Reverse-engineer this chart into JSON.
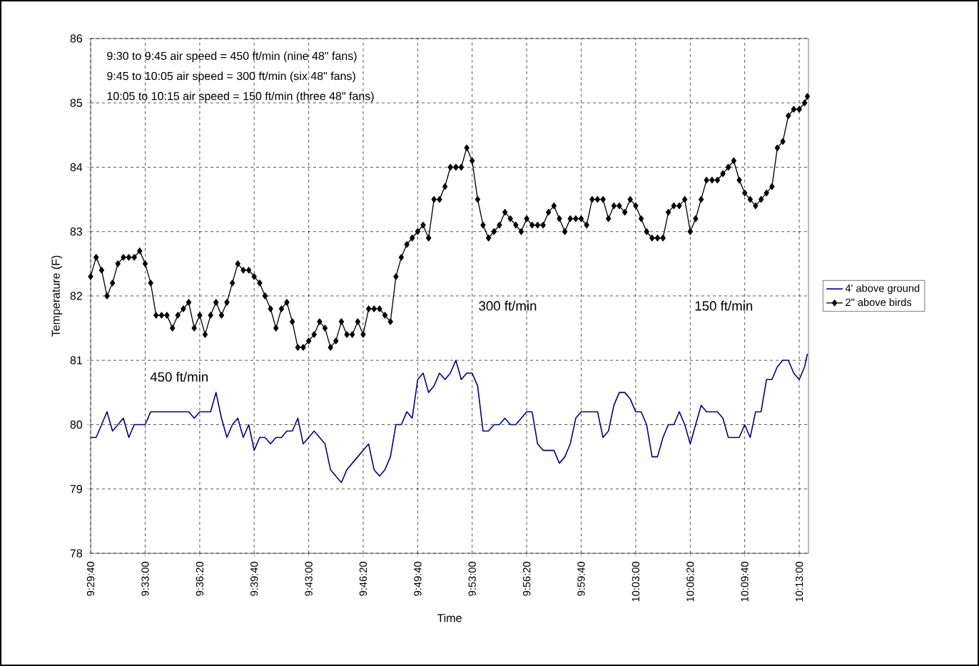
{
  "chart_data": {
    "type": "line",
    "xlabel": "Time",
    "ylabel": "Temperature (F)",
    "x": [
      9.4944,
      9.5,
      9.5056,
      9.5111,
      9.5167,
      9.5222,
      9.5278,
      9.5333,
      9.5389,
      9.5444,
      9.55,
      9.5556,
      9.5611,
      9.5667,
      9.5722,
      9.5778,
      9.5833,
      9.5889,
      9.5944,
      9.6,
      9.6056,
      9.6111,
      9.6167,
      9.6222,
      9.6278,
      9.6333,
      9.6389,
      9.6444,
      9.65,
      9.6556,
      9.6611,
      9.6667,
      9.6722,
      9.6778,
      9.6833,
      9.6889,
      9.6944,
      9.7,
      9.7056,
      9.7111,
      9.7167,
      9.7222,
      9.7278,
      9.7333,
      9.7389,
      9.7444,
      9.75,
      9.7556,
      9.7611,
      9.7667,
      9.7722,
      9.7778,
      9.7833,
      9.7889,
      9.7944,
      9.8,
      9.8056,
      9.8111,
      9.8167,
      9.8222,
      9.8278,
      9.8333,
      9.8389,
      9.8444,
      9.85,
      9.8556,
      9.8611,
      9.8667,
      9.8722,
      9.8778,
      9.8833,
      9.8889,
      9.8944,
      9.9,
      9.9056,
      9.9111,
      9.9167,
      9.9222,
      9.9278,
      9.9333,
      9.9389,
      9.9444,
      9.95,
      9.9556,
      9.9611,
      9.9667,
      9.9722,
      9.9778,
      9.9833,
      9.9889,
      9.9944,
      10.0,
      10.0056,
      10.0111,
      10.0167,
      10.0222,
      10.0278,
      10.0333,
      10.0389,
      10.0444,
      10.05,
      10.0556,
      10.0611,
      10.0667,
      10.0722,
      10.0778,
      10.0833,
      10.0889,
      10.0944,
      10.1,
      10.1056,
      10.1111,
      10.1167,
      10.1222,
      10.1278,
      10.1333,
      10.1389,
      10.1444,
      10.15,
      10.1556,
      10.1611,
      10.1667,
      10.1722,
      10.1778,
      10.1833,
      10.1889,
      10.1944,
      10.2,
      10.2056,
      10.2111,
      10.2167,
      10.2222,
      10.225
    ],
    "series": [
      {
        "name": "4' above ground",
        "color": "#000080",
        "marker": "none",
        "values": [
          79.8,
          79.8,
          80.0,
          80.2,
          79.9,
          80.0,
          80.1,
          79.8,
          80.0,
          80.0,
          80.0,
          80.2,
          80.2,
          80.2,
          80.2,
          80.2,
          80.2,
          80.2,
          80.2,
          80.1,
          80.2,
          80.2,
          80.2,
          80.5,
          80.1,
          79.8,
          80.0,
          80.1,
          79.8,
          80.0,
          79.6,
          79.8,
          79.8,
          79.7,
          79.8,
          79.8,
          79.9,
          79.9,
          80.1,
          79.7,
          79.8,
          79.9,
          79.8,
          79.7,
          79.3,
          79.2,
          79.1,
          79.3,
          79.4,
          79.5,
          79.6,
          79.7,
          79.3,
          79.2,
          79.3,
          79.5,
          80.0,
          80.0,
          80.2,
          80.1,
          80.7,
          80.8,
          80.5,
          80.6,
          80.8,
          80.7,
          80.8,
          81.0,
          80.7,
          80.8,
          80.8,
          80.6,
          79.9,
          79.9,
          80.0,
          80.0,
          80.1,
          80.0,
          80.0,
          80.1,
          80.2,
          80.2,
          79.7,
          79.6,
          79.6,
          79.6,
          79.4,
          79.5,
          79.7,
          80.1,
          80.2,
          80.2,
          80.2,
          80.2,
          79.8,
          79.9,
          80.3,
          80.5,
          80.5,
          80.4,
          80.2,
          80.2,
          80.0,
          79.5,
          79.5,
          79.8,
          80.0,
          80.0,
          80.2,
          80.0,
          79.7,
          80.0,
          80.3,
          80.2,
          80.2,
          80.2,
          80.1,
          79.8,
          79.8,
          79.8,
          80.0,
          79.8,
          80.2,
          80.2,
          80.7,
          80.7,
          80.9,
          81.0,
          81.0,
          80.8,
          80.7,
          80.9,
          81.1
        ]
      },
      {
        "name": "2\" above birds",
        "color": "#000000",
        "marker": "diamond",
        "values": [
          82.3,
          82.6,
          82.4,
          82.0,
          82.2,
          82.5,
          82.6,
          82.6,
          82.6,
          82.7,
          82.5,
          82.2,
          81.7,
          81.7,
          81.7,
          81.5,
          81.7,
          81.8,
          81.9,
          81.5,
          81.7,
          81.4,
          81.7,
          81.9,
          81.7,
          81.9,
          82.2,
          82.5,
          82.4,
          82.4,
          82.3,
          82.2,
          82.0,
          81.8,
          81.5,
          81.8,
          81.9,
          81.6,
          81.2,
          81.2,
          81.3,
          81.4,
          81.6,
          81.5,
          81.2,
          81.3,
          81.6,
          81.4,
          81.4,
          81.6,
          81.4,
          81.8,
          81.8,
          81.8,
          81.7,
          81.6,
          82.3,
          82.6,
          82.8,
          82.9,
          83.0,
          83.1,
          82.9,
          83.5,
          83.5,
          83.7,
          84.0,
          84.0,
          84.0,
          84.3,
          84.1,
          83.5,
          83.1,
          82.9,
          83.0,
          83.1,
          83.3,
          83.2,
          83.1,
          83.0,
          83.2,
          83.1,
          83.1,
          83.1,
          83.3,
          83.4,
          83.2,
          83.0,
          83.2,
          83.2,
          83.2,
          83.1,
          83.5,
          83.5,
          83.5,
          83.2,
          83.4,
          83.4,
          83.3,
          83.5,
          83.4,
          83.2,
          83.0,
          82.9,
          82.9,
          82.9,
          83.3,
          83.4,
          83.4,
          83.5,
          83.0,
          83.2,
          83.5,
          83.8,
          83.8,
          83.8,
          83.9,
          84.0,
          84.1,
          83.8,
          83.6,
          83.5,
          83.4,
          83.5,
          83.6,
          83.7,
          84.3,
          84.4,
          84.8,
          84.9,
          84.9,
          85.0,
          85.1
        ]
      }
    ],
    "xlim": [
      9.4944,
      10.2261
    ],
    "xticks": [
      {
        "value": 9.4944,
        "label": "9:29:40"
      },
      {
        "value": 9.55,
        "label": "9:33:00"
      },
      {
        "value": 9.6056,
        "label": "9:36:20"
      },
      {
        "value": 9.6611,
        "label": "9:39:40"
      },
      {
        "value": 9.7167,
        "label": "9:43:00"
      },
      {
        "value": 9.7722,
        "label": "9:46:20"
      },
      {
        "value": 9.8278,
        "label": "9:49:40"
      },
      {
        "value": 9.8833,
        "label": "9:53:00"
      },
      {
        "value": 9.9389,
        "label": "9:56:20"
      },
      {
        "value": 9.9944,
        "label": "9:59:40"
      },
      {
        "value": 10.05,
        "label": "10:03:00"
      },
      {
        "value": 10.1056,
        "label": "10:06:20"
      },
      {
        "value": 10.1611,
        "label": "10:09:40"
      },
      {
        "value": 10.2167,
        "label": "10:13:00"
      }
    ],
    "ylim": [
      78,
      86
    ],
    "yticks": [
      78,
      79,
      80,
      81,
      82,
      83,
      84,
      85,
      86
    ],
    "grid": true,
    "legend": "right",
    "annotations": [
      "9:30 to 9:45  air speed = 450 ft/min  (nine 48\" fans)",
      "9:45 to 10:05  air speed = 300 ft/min  (six 48\" fans)",
      "10:05 to 10:15  air speed = 150 ft/min  (three 48\" fans)",
      "450 ft/min",
      "300 ft/min",
      "150 ft/min"
    ]
  }
}
